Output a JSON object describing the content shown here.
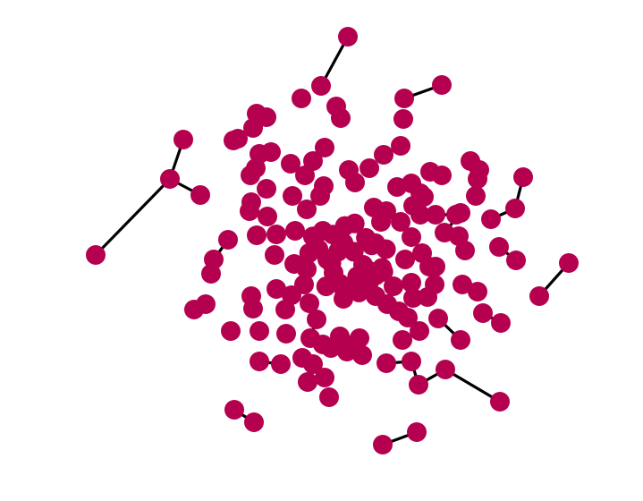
{
  "graph": {
    "type": "network-diagram",
    "node_color": "#b5004f",
    "edge_color": "#000000",
    "background_color": "#ffffff",
    "node_count": 170
  }
}
